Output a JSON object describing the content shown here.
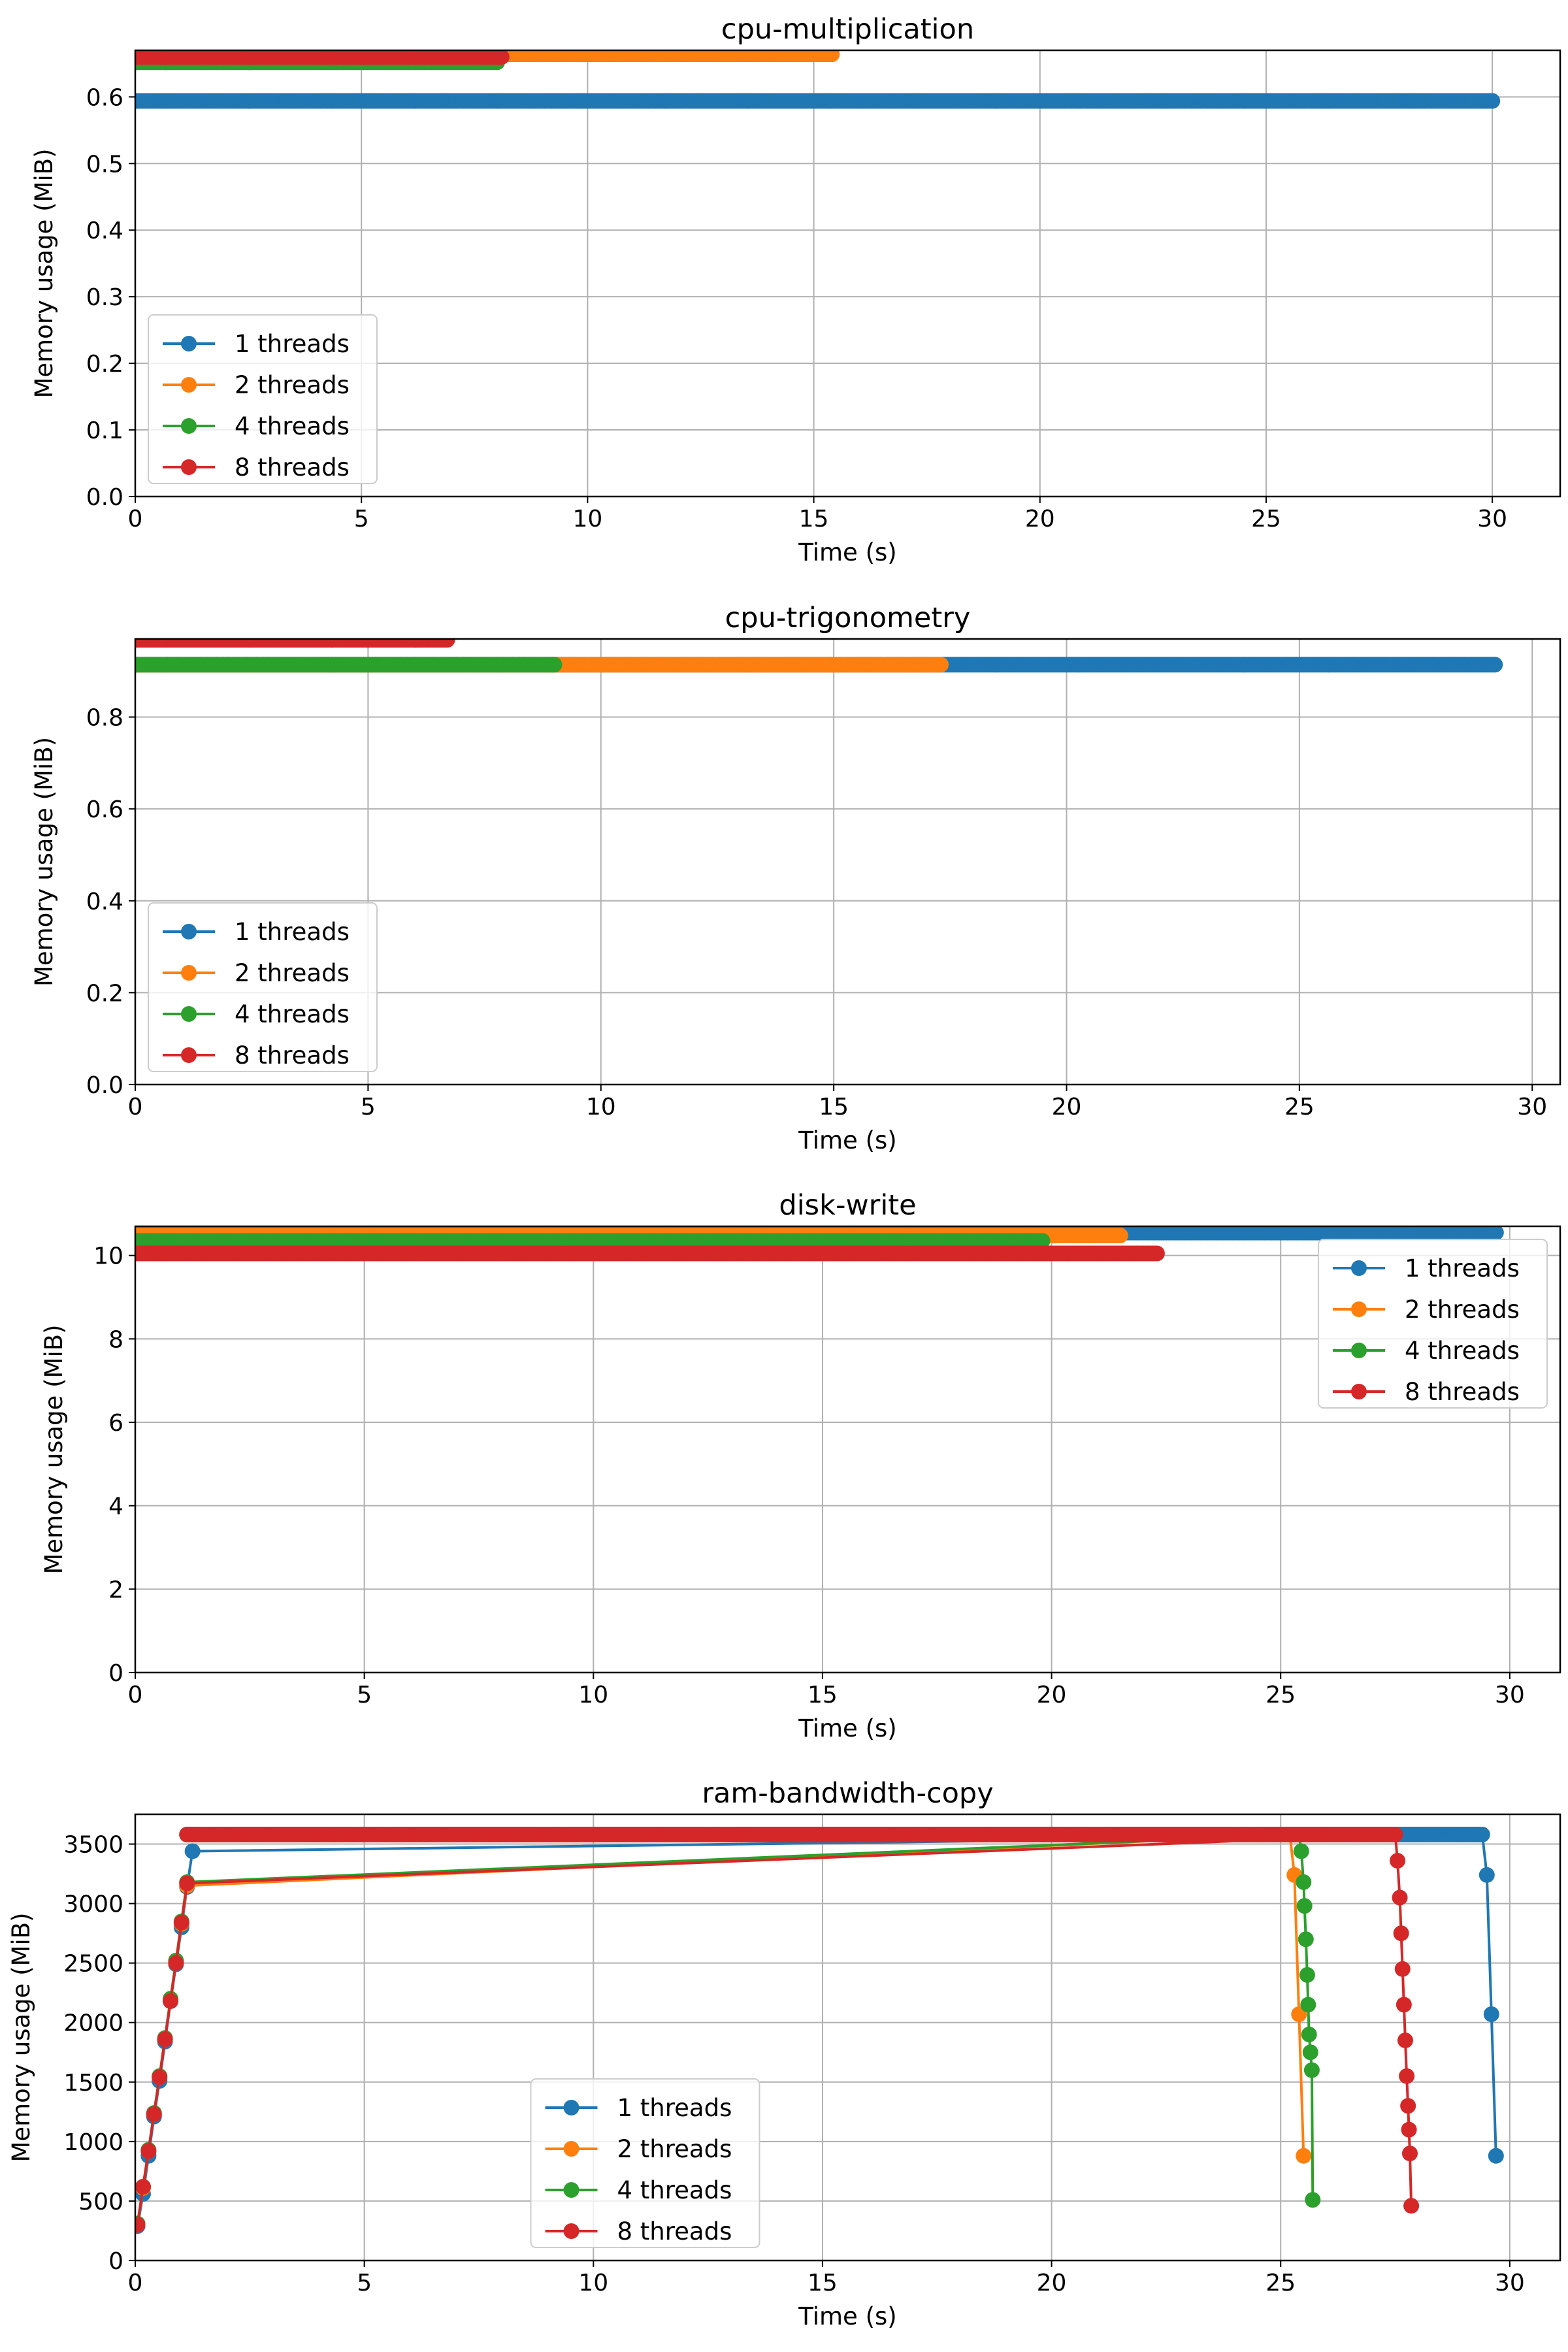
{
  "chart_data": [
    {
      "type": "line",
      "title": "cpu-multiplication",
      "xlabel": "Time (s)",
      "ylabel": "Memory usage (MiB)",
      "xlim": [
        0,
        31.5
      ],
      "ylim": [
        0,
        0.67
      ],
      "xticks": [
        0,
        5,
        10,
        15,
        20,
        25,
        30
      ],
      "yticks": [
        0.0,
        0.1,
        0.2,
        0.3,
        0.4,
        0.5,
        0.6
      ],
      "ytick_labels": [
        "0.0",
        "0.1",
        "0.2",
        "0.3",
        "0.4",
        "0.5",
        "0.6"
      ],
      "grid": true,
      "legend_position": "lower-left",
      "series": [
        {
          "name": "1 threads",
          "color": "#1f77b4",
          "x_start": 0,
          "x_end": 30.0,
          "y": 0.594
        },
        {
          "name": "2 threads",
          "color": "#ff7f0e",
          "x_start": 0,
          "x_end": 15.4,
          "y": 0.664
        },
        {
          "name": "4 threads",
          "color": "#2ca02c",
          "x_start": 0,
          "x_end": 8.0,
          "y": 0.652
        },
        {
          "name": "8 threads",
          "color": "#d62728",
          "x_start": 0,
          "x_end": 8.1,
          "y": 0.66
        }
      ]
    },
    {
      "type": "line",
      "title": "cpu-trigonometry",
      "xlabel": "Time (s)",
      "ylabel": "Memory usage (MiB)",
      "xlim": [
        0,
        30.6
      ],
      "ylim": [
        0,
        0.97
      ],
      "xticks": [
        0,
        5,
        10,
        15,
        20,
        25,
        30
      ],
      "yticks": [
        0.0,
        0.2,
        0.4,
        0.6,
        0.8
      ],
      "ytick_labels": [
        "0.0",
        "0.2",
        "0.4",
        "0.6",
        "0.8"
      ],
      "grid": true,
      "legend_position": "lower-left",
      "series": [
        {
          "name": "1 threads",
          "color": "#1f77b4",
          "x_start": 0,
          "x_end": 29.2,
          "y": 0.914
        },
        {
          "name": "2 threads",
          "color": "#ff7f0e",
          "x_start": 0,
          "x_end": 17.3,
          "y": 0.914
        },
        {
          "name": "4 threads",
          "color": "#2ca02c",
          "x_start": 0,
          "x_end": 9.0,
          "y": 0.914
        },
        {
          "name": "8 threads",
          "color": "#d62728",
          "x_start": 0,
          "x_end": 6.7,
          "y": 0.968
        }
      ]
    },
    {
      "type": "line",
      "title": "disk-write",
      "xlabel": "Time (s)",
      "ylabel": "Memory usage (MiB)",
      "xlim": [
        0,
        31.1
      ],
      "ylim": [
        0,
        10.7
      ],
      "xticks": [
        0,
        5,
        10,
        15,
        20,
        25,
        30
      ],
      "yticks": [
        0,
        2,
        4,
        6,
        8,
        10
      ],
      "ytick_labels": [
        "0",
        "2",
        "4",
        "6",
        "8",
        "10"
      ],
      "grid": true,
      "legend_position": "upper-right",
      "series": [
        {
          "name": "1 threads",
          "color": "#1f77b4",
          "x_start": 0,
          "x_end": 29.7,
          "y": 10.55
        },
        {
          "name": "2 threads",
          "color": "#ff7f0e",
          "x_start": 0,
          "x_end": 21.5,
          "y": 10.48
        },
        {
          "name": "4 threads",
          "color": "#2ca02c",
          "x_start": 0,
          "x_end": 19.8,
          "y": 10.35
        },
        {
          "name": "8 threads",
          "color": "#d62728",
          "x_start": 0,
          "x_end": 22.3,
          "y": 10.05
        }
      ]
    },
    {
      "type": "line",
      "title": "ram-bandwidth-copy",
      "xlabel": "Time (s)",
      "ylabel": "Memory usage (MiB)",
      "xlim": [
        0,
        31.1
      ],
      "ylim": [
        0,
        3750
      ],
      "xticks": [
        0,
        5,
        10,
        15,
        20,
        25,
        30
      ],
      "yticks": [
        0,
        500,
        1000,
        1500,
        2000,
        2500,
        3000,
        3500
      ],
      "ytick_labels": [
        "0",
        "500",
        "1000",
        "1500",
        "2000",
        "2500",
        "3000",
        "3500"
      ],
      "grid": true,
      "legend_position": "lower-center",
      "series": [
        {
          "name": "1 threads",
          "color": "#1f77b4",
          "x": [
            0.05,
            0.17,
            0.29,
            0.41,
            0.53,
            0.65,
            0.77,
            0.89,
            1.01,
            1.13,
            1.25,
            29.4,
            29.5,
            29.6,
            29.7
          ],
          "y": [
            290,
            560,
            880,
            1210,
            1510,
            1840,
            2180,
            2490,
            2800,
            3140,
            3440,
            3580,
            3240,
            2070,
            880
          ]
        },
        {
          "name": "2 threads",
          "color": "#ff7f0e",
          "x": [
            0.05,
            0.17,
            0.29,
            0.41,
            0.53,
            0.65,
            0.77,
            0.89,
            1.01,
            1.13,
            25.2,
            25.3,
            25.4,
            25.5
          ],
          "y": [
            300,
            610,
            920,
            1230,
            1540,
            1860,
            2190,
            2500,
            2830,
            3150,
            3580,
            3240,
            2070,
            880
          ]
        },
        {
          "name": "4 threads",
          "color": "#2ca02c",
          "x": [
            0.05,
            0.17,
            0.29,
            0.41,
            0.53,
            0.65,
            0.77,
            0.89,
            1.01,
            1.13,
            25.4,
            25.45,
            25.5,
            25.52,
            25.55,
            25.58,
            25.6,
            25.62,
            25.65,
            25.68,
            25.7
          ],
          "y": [
            310,
            620,
            930,
            1240,
            1550,
            1870,
            2200,
            2520,
            2850,
            3180,
            3580,
            3440,
            3180,
            2980,
            2700,
            2400,
            2150,
            1900,
            1750,
            1600,
            510
          ]
        },
        {
          "name": "8 threads",
          "color": "#d62728",
          "x": [
            0.05,
            0.17,
            0.29,
            0.41,
            0.53,
            0.65,
            0.77,
            0.89,
            1.01,
            1.13,
            27.5,
            27.55,
            27.6,
            27.63,
            27.66,
            27.69,
            27.72,
            27.75,
            27.78,
            27.8,
            27.82,
            27.85
          ],
          "y": [
            300,
            620,
            920,
            1230,
            1540,
            1860,
            2180,
            2500,
            2840,
            3170,
            3580,
            3360,
            3050,
            2750,
            2450,
            2150,
            1850,
            1550,
            1300,
            1100,
            900,
            460
          ]
        }
      ]
    }
  ]
}
